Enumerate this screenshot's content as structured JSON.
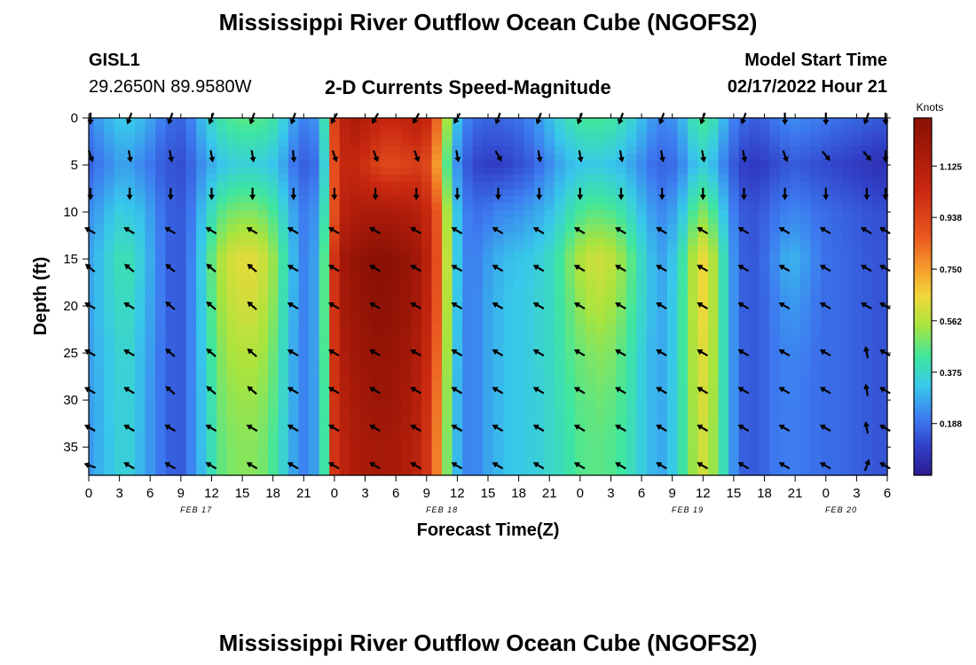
{
  "titles": {
    "main": "Mississippi River Outflow Ocean Cube (NGOFS2)",
    "repeat": "Mississippi River Outflow Ocean Cube (NGOFS2)"
  },
  "station": {
    "id": "GISL1",
    "coords": "29.2650N  89.9580W"
  },
  "subtitle": "2-D Currents Speed-Magnitude",
  "model": {
    "label": "Model Start Time",
    "value": "02/17/2022 Hour 21"
  },
  "chart_data": {
    "type": "heatmap",
    "title": "2-D Currents Speed-Magnitude",
    "xlabel": "Forecast Time(Z)",
    "ylabel": "Depth (ft)",
    "x_ticks": [
      "0",
      "3",
      "6",
      "9",
      "12",
      "15",
      "18",
      "21",
      "0",
      "3",
      "6",
      "9",
      "12",
      "15",
      "18",
      "21",
      "0",
      "3",
      "6",
      "9",
      "12",
      "15",
      "18",
      "21",
      "0",
      "3",
      "6"
    ],
    "x_hours": [
      0,
      3,
      6,
      9,
      12,
      15,
      18,
      21,
      24,
      27,
      30,
      33,
      36,
      39,
      42,
      45,
      48,
      51,
      54,
      57,
      60,
      63,
      66,
      69,
      72,
      75,
      78
    ],
    "date_labels": [
      {
        "hour": 10.5,
        "text": "FEB 17"
      },
      {
        "hour": 34.5,
        "text": "FEB 18"
      },
      {
        "hour": 58.5,
        "text": "FEB 19"
      },
      {
        "hour": 73.5,
        "text": "FEB 20"
      }
    ],
    "y_ticks": [
      0,
      5,
      10,
      15,
      20,
      25,
      30,
      35
    ],
    "xlim": [
      0,
      78
    ],
    "ylim": [
      0,
      38
    ],
    "y_inverted": true,
    "colorbar": {
      "unit": "Knots",
      "ticks": [
        "1.125",
        "0.938",
        "0.750",
        "0.562",
        "0.375",
        "0.188"
      ],
      "tick_values": [
        1.125,
        0.938,
        0.75,
        0.562,
        0.375,
        0.188
      ],
      "range": [
        0.0,
        1.3
      ]
    },
    "speed_profiles": {
      "hours": [
        0,
        1,
        2,
        3,
        4,
        5,
        6,
        7,
        8,
        9,
        10,
        11,
        12,
        13,
        14,
        15,
        16,
        17,
        18,
        19,
        20,
        21,
        22,
        23,
        24,
        25,
        26,
        27,
        28,
        29,
        30,
        31,
        32,
        33,
        34,
        35,
        36,
        37,
        38,
        39,
        40,
        41,
        42,
        43,
        44,
        45,
        46,
        47,
        48,
        49,
        50,
        51,
        52,
        53,
        54,
        55,
        56,
        57,
        58,
        59,
        60,
        61,
        62,
        63,
        64,
        65,
        66,
        67,
        68,
        69,
        70,
        71,
        72,
        73,
        74,
        75,
        76,
        77,
        78
      ],
      "depths": [
        0,
        5,
        10,
        15,
        20,
        25,
        30,
        35,
        38
      ],
      "values": [
        [
          0.22,
          0.16,
          0.24,
          0.27,
          0.27,
          0.26,
          0.26,
          0.25,
          0.25
        ],
        [
          0.26,
          0.2,
          0.27,
          0.31,
          0.31,
          0.3,
          0.29,
          0.29,
          0.29
        ],
        [
          0.3,
          0.23,
          0.31,
          0.36,
          0.35,
          0.33,
          0.33,
          0.32,
          0.32
        ],
        [
          0.33,
          0.26,
          0.34,
          0.4,
          0.38,
          0.36,
          0.35,
          0.35,
          0.35
        ],
        [
          0.33,
          0.26,
          0.33,
          0.4,
          0.38,
          0.36,
          0.35,
          0.35,
          0.35
        ],
        [
          0.31,
          0.23,
          0.31,
          0.35,
          0.33,
          0.31,
          0.31,
          0.3,
          0.3
        ],
        [
          0.27,
          0.2,
          0.26,
          0.28,
          0.27,
          0.26,
          0.25,
          0.25,
          0.25
        ],
        [
          0.22,
          0.16,
          0.2,
          0.21,
          0.21,
          0.2,
          0.2,
          0.2,
          0.2
        ],
        [
          0.18,
          0.14,
          0.16,
          0.16,
          0.16,
          0.16,
          0.16,
          0.16,
          0.16
        ],
        [
          0.17,
          0.13,
          0.15,
          0.15,
          0.15,
          0.15,
          0.15,
          0.15,
          0.15
        ],
        [
          0.22,
          0.17,
          0.2,
          0.22,
          0.22,
          0.22,
          0.22,
          0.22,
          0.22
        ],
        [
          0.3,
          0.23,
          0.3,
          0.34,
          0.33,
          0.32,
          0.31,
          0.31,
          0.3
        ],
        [
          0.37,
          0.28,
          0.39,
          0.47,
          0.45,
          0.43,
          0.41,
          0.4,
          0.4
        ],
        [
          0.42,
          0.32,
          0.46,
          0.56,
          0.54,
          0.51,
          0.49,
          0.47,
          0.47
        ],
        [
          0.45,
          0.34,
          0.49,
          0.61,
          0.58,
          0.55,
          0.52,
          0.5,
          0.5
        ],
        [
          0.46,
          0.35,
          0.5,
          0.63,
          0.6,
          0.56,
          0.53,
          0.51,
          0.51
        ],
        [
          0.46,
          0.35,
          0.5,
          0.63,
          0.6,
          0.56,
          0.53,
          0.51,
          0.51
        ],
        [
          0.45,
          0.34,
          0.48,
          0.6,
          0.57,
          0.54,
          0.51,
          0.49,
          0.49
        ],
        [
          0.42,
          0.32,
          0.44,
          0.53,
          0.51,
          0.48,
          0.46,
          0.44,
          0.44
        ],
        [
          0.35,
          0.27,
          0.36,
          0.42,
          0.4,
          0.38,
          0.37,
          0.36,
          0.36
        ],
        [
          0.27,
          0.2,
          0.27,
          0.3,
          0.29,
          0.28,
          0.28,
          0.27,
          0.27
        ],
        [
          0.22,
          0.16,
          0.21,
          0.22,
          0.22,
          0.22,
          0.22,
          0.22,
          0.22
        ],
        [
          0.24,
          0.18,
          0.24,
          0.26,
          0.26,
          0.26,
          0.26,
          0.26,
          0.26
        ],
        [
          0.4,
          0.35,
          0.4,
          0.45,
          0.45,
          0.44,
          0.43,
          0.42,
          0.42
        ],
        [
          0.95,
          0.9,
          0.9,
          1.0,
          1.0,
          1.0,
          1.0,
          1.0,
          1.0
        ],
        [
          1.1,
          1.05,
          1.1,
          1.2,
          1.18,
          1.15,
          1.12,
          1.1,
          1.1
        ],
        [
          1.15,
          1.05,
          1.14,
          1.25,
          1.22,
          1.2,
          1.17,
          1.15,
          1.15
        ],
        [
          1.12,
          1.0,
          1.15,
          1.28,
          1.26,
          1.23,
          1.2,
          1.17,
          1.17
        ],
        [
          1.08,
          0.95,
          1.16,
          1.3,
          1.28,
          1.25,
          1.22,
          1.18,
          1.18
        ],
        [
          1.05,
          0.92,
          1.16,
          1.3,
          1.28,
          1.25,
          1.22,
          1.18,
          1.18
        ],
        [
          1.05,
          0.92,
          1.15,
          1.28,
          1.26,
          1.23,
          1.2,
          1.17,
          1.17
        ],
        [
          1.08,
          0.94,
          1.14,
          1.25,
          1.23,
          1.2,
          1.17,
          1.14,
          1.14
        ],
        [
          1.1,
          0.96,
          1.12,
          1.2,
          1.18,
          1.15,
          1.12,
          1.1,
          1.1
        ],
        [
          1.05,
          0.92,
          1.05,
          1.1,
          1.08,
          1.05,
          1.02,
          1.0,
          1.0
        ],
        [
          0.85,
          0.75,
          0.88,
          0.9,
          0.88,
          0.85,
          0.82,
          0.8,
          0.8
        ],
        [
          0.55,
          0.45,
          0.55,
          0.58,
          0.56,
          0.54,
          0.52,
          0.5,
          0.5
        ],
        [
          0.32,
          0.24,
          0.32,
          0.33,
          0.32,
          0.31,
          0.3,
          0.3,
          0.3
        ],
        [
          0.22,
          0.15,
          0.21,
          0.22,
          0.22,
          0.22,
          0.22,
          0.22,
          0.22
        ],
        [
          0.18,
          0.11,
          0.19,
          0.22,
          0.23,
          0.23,
          0.23,
          0.23,
          0.23
        ],
        [
          0.17,
          0.1,
          0.2,
          0.26,
          0.27,
          0.27,
          0.27,
          0.27,
          0.27
        ],
        [
          0.17,
          0.1,
          0.22,
          0.29,
          0.3,
          0.3,
          0.3,
          0.3,
          0.3
        ],
        [
          0.18,
          0.11,
          0.23,
          0.31,
          0.32,
          0.32,
          0.32,
          0.32,
          0.32
        ],
        [
          0.19,
          0.13,
          0.24,
          0.32,
          0.33,
          0.33,
          0.33,
          0.33,
          0.33
        ],
        [
          0.22,
          0.15,
          0.26,
          0.33,
          0.34,
          0.34,
          0.34,
          0.34,
          0.34
        ],
        [
          0.26,
          0.19,
          0.28,
          0.35,
          0.36,
          0.36,
          0.35,
          0.35,
          0.35
        ],
        [
          0.31,
          0.23,
          0.31,
          0.38,
          0.38,
          0.38,
          0.37,
          0.37,
          0.37
        ],
        [
          0.36,
          0.27,
          0.35,
          0.43,
          0.42,
          0.41,
          0.4,
          0.39,
          0.39
        ],
        [
          0.4,
          0.3,
          0.4,
          0.5,
          0.47,
          0.45,
          0.43,
          0.42,
          0.42
        ],
        [
          0.43,
          0.32,
          0.44,
          0.56,
          0.52,
          0.48,
          0.46,
          0.45,
          0.45
        ],
        [
          0.44,
          0.33,
          0.46,
          0.59,
          0.55,
          0.5,
          0.47,
          0.46,
          0.46
        ],
        [
          0.44,
          0.33,
          0.46,
          0.6,
          0.56,
          0.51,
          0.48,
          0.46,
          0.46
        ],
        [
          0.43,
          0.32,
          0.45,
          0.58,
          0.54,
          0.5,
          0.47,
          0.45,
          0.45
        ],
        [
          0.4,
          0.3,
          0.42,
          0.53,
          0.5,
          0.46,
          0.44,
          0.43,
          0.43
        ],
        [
          0.36,
          0.27,
          0.37,
          0.46,
          0.44,
          0.41,
          0.4,
          0.39,
          0.39
        ],
        [
          0.31,
          0.23,
          0.31,
          0.38,
          0.37,
          0.35,
          0.34,
          0.34,
          0.34
        ],
        [
          0.26,
          0.19,
          0.26,
          0.31,
          0.31,
          0.3,
          0.3,
          0.3,
          0.3
        ],
        [
          0.23,
          0.17,
          0.23,
          0.27,
          0.28,
          0.28,
          0.28,
          0.28,
          0.28
        ],
        [
          0.24,
          0.18,
          0.26,
          0.32,
          0.33,
          0.33,
          0.33,
          0.33,
          0.33
        ],
        [
          0.3,
          0.23,
          0.33,
          0.42,
          0.43,
          0.43,
          0.42,
          0.42,
          0.42
        ],
        [
          0.4,
          0.3,
          0.44,
          0.56,
          0.56,
          0.55,
          0.54,
          0.53,
          0.53
        ],
        [
          0.44,
          0.34,
          0.5,
          0.64,
          0.64,
          0.62,
          0.61,
          0.6,
          0.6
        ],
        [
          0.4,
          0.3,
          0.44,
          0.56,
          0.56,
          0.55,
          0.54,
          0.53,
          0.53
        ],
        [
          0.3,
          0.22,
          0.32,
          0.4,
          0.4,
          0.4,
          0.4,
          0.4,
          0.4
        ],
        [
          0.22,
          0.15,
          0.21,
          0.24,
          0.24,
          0.24,
          0.24,
          0.24,
          0.24
        ],
        [
          0.18,
          0.1,
          0.15,
          0.16,
          0.16,
          0.16,
          0.16,
          0.16,
          0.16
        ],
        [
          0.16,
          0.09,
          0.14,
          0.15,
          0.15,
          0.15,
          0.15,
          0.15,
          0.15
        ],
        [
          0.17,
          0.1,
          0.16,
          0.18,
          0.17,
          0.17,
          0.17,
          0.17,
          0.17
        ],
        [
          0.2,
          0.12,
          0.19,
          0.23,
          0.21,
          0.2,
          0.2,
          0.2,
          0.2
        ],
        [
          0.22,
          0.14,
          0.21,
          0.28,
          0.24,
          0.22,
          0.21,
          0.21,
          0.21
        ],
        [
          0.23,
          0.15,
          0.22,
          0.29,
          0.25,
          0.22,
          0.21,
          0.21,
          0.21
        ],
        [
          0.22,
          0.14,
          0.21,
          0.26,
          0.23,
          0.21,
          0.2,
          0.2,
          0.2
        ],
        [
          0.21,
          0.13,
          0.19,
          0.22,
          0.2,
          0.19,
          0.19,
          0.19,
          0.19
        ],
        [
          0.2,
          0.12,
          0.18,
          0.19,
          0.18,
          0.18,
          0.18,
          0.18,
          0.18
        ],
        [
          0.19,
          0.11,
          0.17,
          0.18,
          0.18,
          0.18,
          0.18,
          0.18,
          0.18
        ],
        [
          0.18,
          0.1,
          0.16,
          0.17,
          0.17,
          0.17,
          0.17,
          0.17,
          0.17
        ],
        [
          0.17,
          0.09,
          0.15,
          0.16,
          0.16,
          0.16,
          0.16,
          0.16,
          0.16
        ],
        [
          0.16,
          0.08,
          0.14,
          0.15,
          0.15,
          0.15,
          0.15,
          0.15,
          0.15
        ],
        [
          0.15,
          0.07,
          0.13,
          0.14,
          0.14,
          0.14,
          0.14,
          0.14,
          0.14
        ],
        [
          0.15,
          0.07,
          0.13,
          0.14,
          0.14,
          0.14,
          0.14,
          0.14,
          0.14
        ]
      ]
    },
    "current_vectors": {
      "hours": [
        0,
        4,
        8,
        12,
        16,
        20,
        24,
        28,
        32,
        36,
        40,
        44,
        48,
        52,
        56,
        60,
        64,
        68,
        72,
        76,
        78
      ],
      "depths": [
        0,
        4,
        8,
        12,
        16,
        20,
        25,
        29,
        33,
        37
      ],
      "directions_deg": [
        [
          180,
          200,
          200,
          200,
          200,
          200,
          210,
          210,
          210,
          210,
          200,
          200,
          200,
          200,
          200,
          200,
          200,
          180,
          180,
          200,
          180
        ],
        [
          160,
          170,
          170,
          170,
          170,
          175,
          160,
          160,
          160,
          170,
          150,
          170,
          170,
          170,
          170,
          170,
          170,
          160,
          140,
          140,
          180
        ],
        [
          180,
          180,
          180,
          180,
          180,
          180,
          180,
          180,
          180,
          180,
          180,
          180,
          180,
          180,
          180,
          180,
          180,
          180,
          180,
          180,
          180
        ],
        [
          300,
          300,
          300,
          300,
          300,
          300,
          300,
          300,
          300,
          300,
          300,
          300,
          300,
          300,
          300,
          300,
          300,
          300,
          300,
          300,
          300
        ],
        [
          310,
          310,
          310,
          310,
          310,
          300,
          300,
          300,
          300,
          300,
          300,
          300,
          300,
          300,
          300,
          300,
          300,
          300,
          300,
          300,
          300
        ],
        [
          300,
          300,
          310,
          310,
          310,
          300,
          300,
          300,
          300,
          300,
          300,
          300,
          300,
          300,
          300,
          300,
          300,
          300,
          300,
          300,
          300
        ],
        [
          300,
          300,
          310,
          310,
          310,
          300,
          300,
          300,
          300,
          300,
          300,
          300,
          300,
          300,
          300,
          300,
          300,
          300,
          300,
          350,
          300
        ],
        [
          300,
          300,
          310,
          310,
          310,
          300,
          300,
          300,
          300,
          300,
          300,
          300,
          300,
          300,
          300,
          300,
          300,
          300,
          300,
          350,
          300
        ],
        [
          300,
          300,
          300,
          300,
          300,
          300,
          300,
          300,
          300,
          300,
          300,
          300,
          300,
          300,
          300,
          300,
          300,
          300,
          300,
          350,
          300
        ],
        [
          290,
          300,
          300,
          300,
          300,
          300,
          300,
          300,
          300,
          300,
          300,
          300,
          300,
          300,
          300,
          300,
          300,
          300,
          300,
          20,
          300
        ]
      ]
    }
  }
}
